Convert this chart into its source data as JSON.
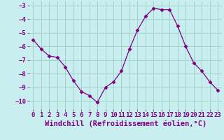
{
  "hours": [
    0,
    1,
    2,
    3,
    4,
    5,
    6,
    7,
    8,
    9,
    10,
    11,
    12,
    13,
    14,
    15,
    16,
    17,
    18,
    19,
    20,
    21,
    22,
    23
  ],
  "values": [
    -5.5,
    -6.2,
    -6.7,
    -6.8,
    -7.5,
    -8.5,
    -9.3,
    -9.6,
    -10.1,
    -9.0,
    -8.6,
    -7.8,
    -6.2,
    -4.8,
    -3.8,
    -3.2,
    -3.3,
    -3.3,
    -4.5,
    -6.0,
    -7.2,
    -7.8,
    -8.6,
    -9.2
  ],
  "xlabel": "Windchill (Refroidissement éolien,°C)",
  "ylim": [
    -10.6,
    -2.7
  ],
  "yticks": [
    -10,
    -9,
    -8,
    -7,
    -6,
    -5,
    -4,
    -3
  ],
  "xticks": [
    0,
    1,
    2,
    3,
    4,
    5,
    6,
    7,
    8,
    9,
    10,
    11,
    12,
    13,
    14,
    15,
    16,
    17,
    18,
    19,
    20,
    21,
    22,
    23
  ],
  "line_color": "#800080",
  "marker": "D",
  "marker_size": 2.5,
  "bg_color": "#c8eef0",
  "grid_color": "#a0d4cc",
  "tick_label_color": "#800080",
  "xlabel_color": "#800080",
  "xlabel_fontsize": 7.5,
  "tick_fontsize": 6.5
}
